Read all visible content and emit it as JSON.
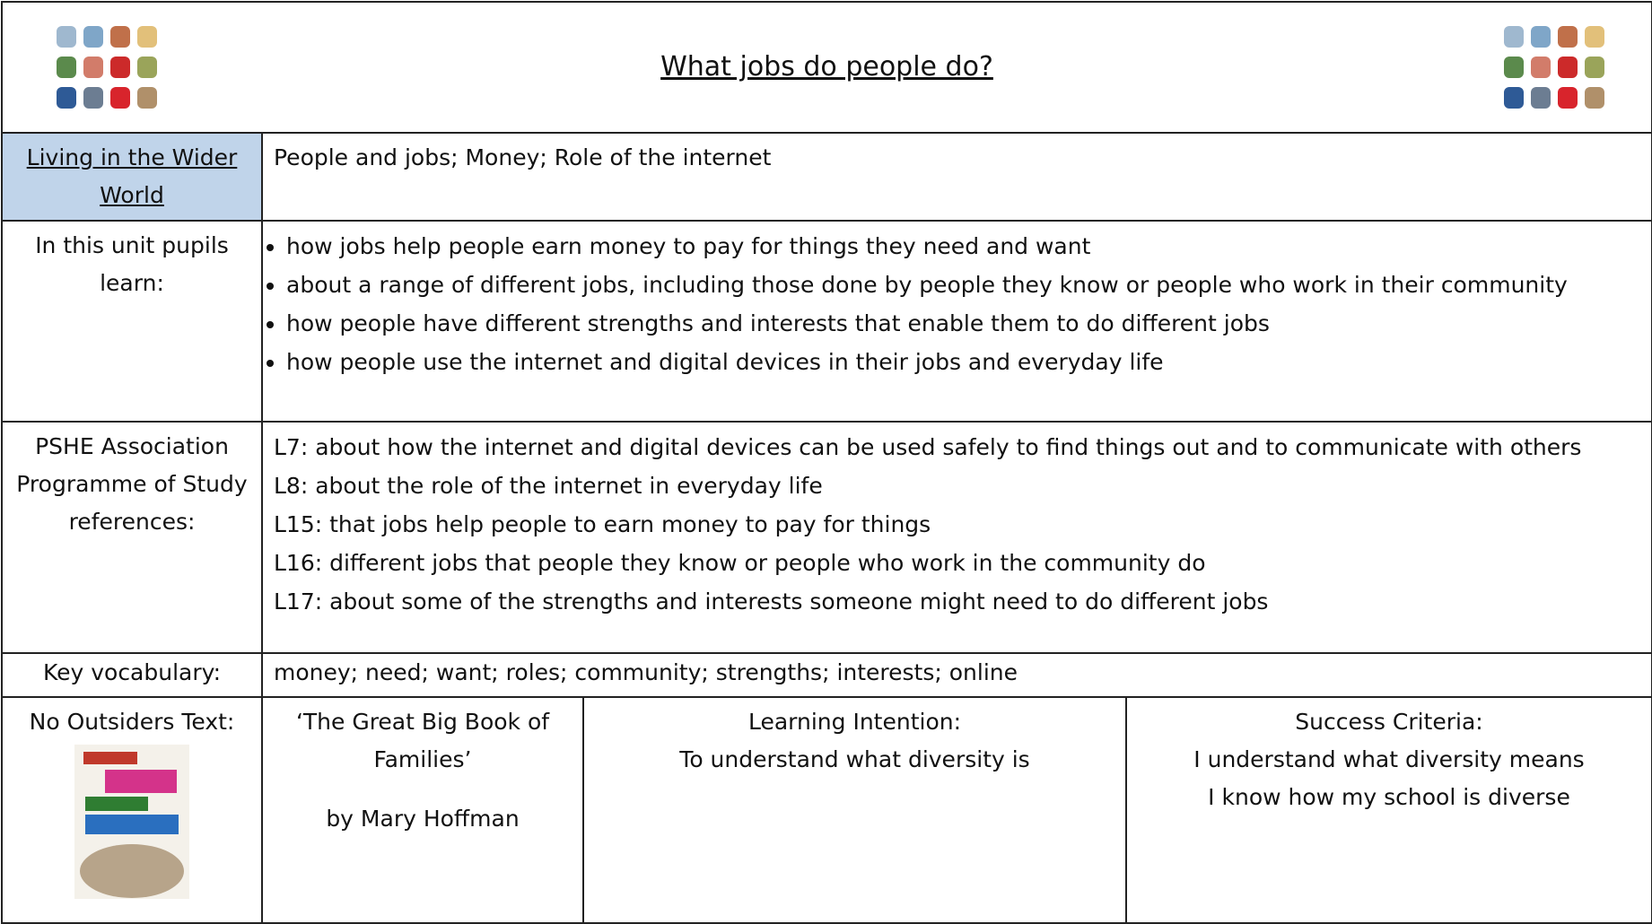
{
  "header": {
    "title": "What jobs do people do?"
  },
  "theme": {
    "label": "Living in the Wider World",
    "content": "People and jobs; Money; Role of the internet"
  },
  "unit": {
    "label": "In this unit pupils learn:",
    "items": [
      "how jobs help people earn money to pay for things they need and want",
      "about a range of different jobs, including those done by people they know or people who work in their community",
      "how people have different strengths and interests that enable them to do different jobs",
      "how people use the internet and digital devices in their jobs and everyday life"
    ]
  },
  "references": {
    "label": "PSHE Association Programme of Study references:",
    "items": [
      "L7: about how the internet and digital devices can be used safely to find things out and to communicate with others",
      "L8: about the role of the internet in everyday life",
      "L15: that jobs help people to earn money to pay for things",
      "L16: different jobs that people they know or people who work in the community do",
      "L17: about some of the strengths and interests someone might need to do different jobs"
    ]
  },
  "vocabulary": {
    "label": "Key vocabulary:",
    "content": "money; need; want; roles; community; strengths; interests; online"
  },
  "text": {
    "label": "No Outsiders Text:",
    "book_title": "‘The Great Big Book of Families’",
    "author": "by Mary Hoffman"
  },
  "learning_intention": {
    "label": "Learning Intention:",
    "items": [
      "To understand what diversity is"
    ]
  },
  "success_criteria": {
    "label": "Success Criteria:",
    "items": [
      "I understand what diversity means",
      "I know how my school is diverse"
    ]
  }
}
